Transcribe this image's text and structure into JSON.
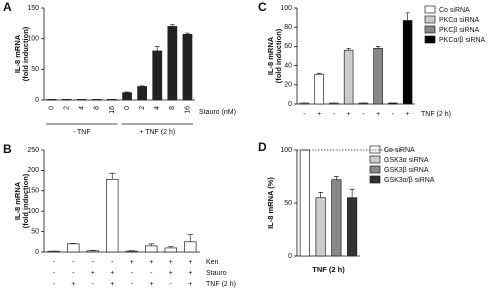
{
  "chart_data": [
    {
      "type": "bar",
      "panel": "A",
      "ylabel": [
        "IL-8 mRNA",
        "(fold induction)"
      ],
      "ylim": [
        0,
        150
      ],
      "yticks": [
        0,
        50,
        100,
        150
      ],
      "categories": [
        "0",
        "2",
        "4",
        "8",
        "16"
      ],
      "category_axis_label": "Stauro (nM)",
      "series": [
        {
          "name": "- TNF",
          "color": "#222222",
          "values": [
            1,
            1,
            1,
            1,
            1
          ],
          "errors": [
            0,
            0,
            0,
            0,
            0
          ]
        },
        {
          "name": "+ TNF (2 h)",
          "color": "#222222",
          "values": [
            12,
            22,
            80,
            120,
            107
          ],
          "errors": [
            1,
            1,
            7,
            3,
            2
          ]
        }
      ],
      "legend": false
    },
    {
      "type": "bar",
      "panel": "B",
      "ylabel": [
        "IL-8 mRNA",
        "(fold induction)"
      ],
      "ylim": [
        0,
        250
      ],
      "yticks": [
        0,
        50,
        100,
        150,
        200,
        250
      ],
      "color": "#ffffff",
      "values": [
        2,
        20,
        3,
        178,
        2,
        15,
        10,
        25
      ],
      "errors": [
        0,
        1,
        1,
        15,
        1,
        5,
        3,
        18
      ],
      "rows": [
        {
          "label": "Ken",
          "signs": [
            "-",
            "-",
            "-",
            "-",
            "+",
            "+",
            "+",
            "+"
          ]
        },
        {
          "label": "Stauro",
          "signs": [
            "-",
            "-",
            "+",
            "+",
            "-",
            "-",
            "+",
            "+"
          ]
        },
        {
          "label": "TNF (2 h)",
          "signs": [
            "-",
            "+",
            "-",
            "+",
            "-",
            "+",
            "-",
            "+"
          ]
        }
      ]
    },
    {
      "type": "bar",
      "panel": "C",
      "ylabel": [
        "IL-8 mRNA",
        "(fold induction)"
      ],
      "ylim": [
        0,
        100
      ],
      "yticks": [
        0,
        20,
        40,
        60,
        80,
        100
      ],
      "series": [
        {
          "name": "Co siRNA",
          "color": "#ffffff",
          "values": [
            1,
            31
          ],
          "errors": [
            0,
            1
          ]
        },
        {
          "name": "PKCα siRNA",
          "color": "#cccccc",
          "values": [
            1,
            56
          ],
          "errors": [
            0,
            2
          ]
        },
        {
          "name": "PKCβ siRNA",
          "color": "#888888",
          "values": [
            1,
            58
          ],
          "errors": [
            0,
            2
          ]
        },
        {
          "name": "PKCα/β siRNA",
          "color": "#000000",
          "values": [
            1,
            87
          ],
          "errors": [
            0,
            8
          ]
        }
      ],
      "rows": [
        {
          "label": "TNF (2 h)",
          "signs": [
            "-",
            "+",
            "-",
            "+",
            "-",
            "+",
            "-",
            "+"
          ]
        }
      ],
      "legend": true
    },
    {
      "type": "bar",
      "panel": "D",
      "ylabel": [
        "IL-8 mRNA (%)"
      ],
      "ylim": [
        0,
        100
      ],
      "yticks": [
        0,
        50,
        100
      ],
      "reference_line": 100,
      "series": [
        {
          "name": "Co siRNA",
          "color": "#ffffff",
          "values": [
            100
          ],
          "errors": [
            0
          ]
        },
        {
          "name": "GSK3α siRNA",
          "color": "#cccccc",
          "values": [
            55
          ],
          "errors": [
            5
          ]
        },
        {
          "name": "GSK3β siRNA",
          "color": "#888888",
          "values": [
            72
          ],
          "errors": [
            3
          ]
        },
        {
          "name": "GSK3α/β siRNA",
          "color": "#333333",
          "values": [
            55
          ],
          "errors": [
            8
          ]
        }
      ],
      "xlabel": "TNF (2 h)",
      "legend": true
    }
  ]
}
